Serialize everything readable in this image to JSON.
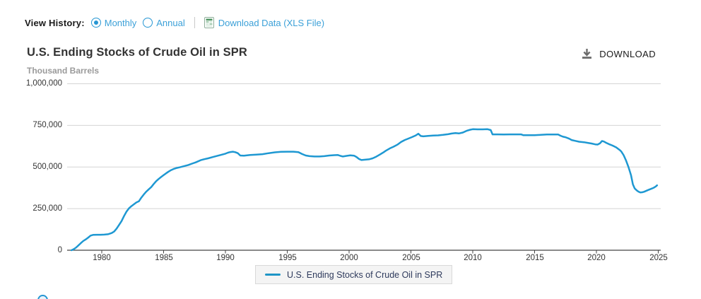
{
  "view_history": {
    "label": "View History:",
    "options": [
      {
        "label": "Monthly",
        "selected": true
      },
      {
        "label": "Annual",
        "selected": false
      }
    ],
    "download_link": "Download Data (XLS File)",
    "xls_icon": "spreadsheet-icon"
  },
  "header": {
    "title": "U.S. Ending Stocks of Crude Oil in SPR",
    "units": "Thousand Barrels",
    "download_label": "DOWNLOAD",
    "download_icon": "download-arrow-icon"
  },
  "colors": {
    "accent_blue": "#2696d3",
    "link_blue": "#3ba0d8",
    "line_blue": "#1e98d2",
    "grid_gray": "#d4d4d4",
    "axis_dark": "#444444"
  },
  "chart_data": {
    "type": "line",
    "title": "U.S. Ending Stocks of Crude Oil in SPR",
    "ylabel": "Thousand Barrels",
    "xlabel": "",
    "grid": "horizontal",
    "xlim": [
      1977.2,
      2025.2
    ],
    "ylim": [
      0,
      1000000
    ],
    "yticks": [
      0,
      250000,
      500000,
      750000,
      1000000
    ],
    "ytick_labels": [
      "0",
      "250,000",
      "500,000",
      "750,000",
      "1,000,000"
    ],
    "xticks": [
      1980,
      1985,
      1990,
      1995,
      2000,
      2005,
      2010,
      2015,
      2020,
      2025
    ],
    "xtick_labels": [
      "1980",
      "1985",
      "1990",
      "1995",
      "2000",
      "2005",
      "2010",
      "2015",
      "2020",
      "2025"
    ],
    "line_color": "#1e98d2",
    "legend": {
      "position": "bottom",
      "label": "U.S. Ending Stocks of Crude Oil in SPR"
    },
    "series": [
      {
        "name": "U.S. Ending Stocks of Crude Oil in SPR",
        "units": "thousand barrels",
        "points": [
          [
            1977.55,
            0
          ],
          [
            1977.7,
            5000
          ],
          [
            1977.9,
            15000
          ],
          [
            1978.1,
            28000
          ],
          [
            1978.3,
            42000
          ],
          [
            1978.5,
            55000
          ],
          [
            1978.7,
            65000
          ],
          [
            1978.9,
            76000
          ],
          [
            1979.1,
            88000
          ],
          [
            1979.3,
            92000
          ],
          [
            1979.6,
            93000
          ],
          [
            1979.9,
            93000
          ],
          [
            1980.2,
            94000
          ],
          [
            1980.5,
            96000
          ],
          [
            1980.8,
            103000
          ],
          [
            1981.0,
            112000
          ],
          [
            1981.2,
            130000
          ],
          [
            1981.4,
            152000
          ],
          [
            1981.6,
            175000
          ],
          [
            1981.8,
            205000
          ],
          [
            1982.0,
            232000
          ],
          [
            1982.2,
            252000
          ],
          [
            1982.4,
            265000
          ],
          [
            1982.6,
            276000
          ],
          [
            1982.8,
            287000
          ],
          [
            1983.0,
            294000
          ],
          [
            1983.2,
            316000
          ],
          [
            1983.4,
            335000
          ],
          [
            1983.6,
            352000
          ],
          [
            1983.8,
            366000
          ],
          [
            1984.0,
            379000
          ],
          [
            1984.2,
            398000
          ],
          [
            1984.4,
            415000
          ],
          [
            1984.6,
            428000
          ],
          [
            1984.8,
            440000
          ],
          [
            1985.0,
            451000
          ],
          [
            1985.2,
            462000
          ],
          [
            1985.4,
            472000
          ],
          [
            1985.6,
            481000
          ],
          [
            1985.8,
            488000
          ],
          [
            1986.0,
            493000
          ],
          [
            1986.3,
            498000
          ],
          [
            1986.6,
            504000
          ],
          [
            1987.0,
            512000
          ],
          [
            1987.3,
            520000
          ],
          [
            1987.6,
            528000
          ],
          [
            1988.0,
            541000
          ],
          [
            1988.3,
            547000
          ],
          [
            1988.6,
            552000
          ],
          [
            1989.0,
            560000
          ],
          [
            1989.3,
            566000
          ],
          [
            1989.6,
            572000
          ],
          [
            1990.0,
            580000
          ],
          [
            1990.2,
            586000
          ],
          [
            1990.4,
            590000
          ],
          [
            1990.6,
            592000
          ],
          [
            1990.8,
            589000
          ],
          [
            1991.0,
            583000
          ],
          [
            1991.2,
            569000
          ],
          [
            1991.5,
            568000
          ],
          [
            1992.0,
            572000
          ],
          [
            1992.5,
            574000
          ],
          [
            1993.0,
            577000
          ],
          [
            1993.5,
            583000
          ],
          [
            1994.0,
            588000
          ],
          [
            1994.5,
            591000
          ],
          [
            1995.0,
            592000
          ],
          [
            1995.5,
            592000
          ],
          [
            1995.9,
            589000
          ],
          [
            1996.2,
            578000
          ],
          [
            1996.5,
            569000
          ],
          [
            1996.8,
            565000
          ],
          [
            1997.2,
            563000
          ],
          [
            1997.6,
            563000
          ],
          [
            1998.0,
            565000
          ],
          [
            1998.4,
            569000
          ],
          [
            1998.8,
            571000
          ],
          [
            1999.1,
            572000
          ],
          [
            1999.3,
            567000
          ],
          [
            1999.5,
            563000
          ],
          [
            1999.8,
            567000
          ],
          [
            2000.1,
            570000
          ],
          [
            2000.4,
            568000
          ],
          [
            2000.6,
            560000
          ],
          [
            2000.8,
            548000
          ],
          [
            2001.0,
            542000
          ],
          [
            2001.3,
            544000
          ],
          [
            2001.6,
            546000
          ],
          [
            2001.9,
            552000
          ],
          [
            2002.2,
            562000
          ],
          [
            2002.5,
            575000
          ],
          [
            2002.8,
            589000
          ],
          [
            2003.0,
            599000
          ],
          [
            2003.3,
            612000
          ],
          [
            2003.6,
            622000
          ],
          [
            2003.9,
            634000
          ],
          [
            2004.2,
            650000
          ],
          [
            2004.5,
            662000
          ],
          [
            2004.8,
            671000
          ],
          [
            2005.1,
            680000
          ],
          [
            2005.4,
            690000
          ],
          [
            2005.6,
            700000
          ],
          [
            2005.8,
            686000
          ],
          [
            2006.0,
            684000
          ],
          [
            2006.4,
            687000
          ],
          [
            2006.8,
            689000
          ],
          [
            2007.2,
            690000
          ],
          [
            2007.6,
            693000
          ],
          [
            2008.0,
            697000
          ],
          [
            2008.3,
            701000
          ],
          [
            2008.6,
            704000
          ],
          [
            2008.9,
            702000
          ],
          [
            2009.2,
            707000
          ],
          [
            2009.5,
            717000
          ],
          [
            2009.8,
            724000
          ],
          [
            2010.0,
            727000
          ],
          [
            2010.4,
            726000
          ],
          [
            2010.8,
            726000
          ],
          [
            2011.2,
            727000
          ],
          [
            2011.45,
            722000
          ],
          [
            2011.6,
            696000
          ],
          [
            2012.0,
            696000
          ],
          [
            2012.5,
            695000
          ],
          [
            2013.0,
            696000
          ],
          [
            2013.5,
            696000
          ],
          [
            2013.9,
            696000
          ],
          [
            2014.1,
            691000
          ],
          [
            2014.6,
            691000
          ],
          [
            2015.0,
            691000
          ],
          [
            2015.5,
            693000
          ],
          [
            2016.0,
            695000
          ],
          [
            2016.5,
            695000
          ],
          [
            2016.9,
            695000
          ],
          [
            2017.1,
            688000
          ],
          [
            2017.3,
            682000
          ],
          [
            2017.5,
            679000
          ],
          [
            2017.8,
            670000
          ],
          [
            2018.0,
            662000
          ],
          [
            2018.3,
            657000
          ],
          [
            2018.6,
            652000
          ],
          [
            2019.0,
            649000
          ],
          [
            2019.3,
            645000
          ],
          [
            2019.6,
            641000
          ],
          [
            2019.9,
            636000
          ],
          [
            2020.1,
            635000
          ],
          [
            2020.3,
            643000
          ],
          [
            2020.45,
            656000
          ],
          [
            2020.6,
            653000
          ],
          [
            2020.8,
            645000
          ],
          [
            2021.0,
            638000
          ],
          [
            2021.3,
            629000
          ],
          [
            2021.6,
            618000
          ],
          [
            2021.9,
            601000
          ],
          [
            2022.0,
            594000
          ],
          [
            2022.2,
            571000
          ],
          [
            2022.4,
            538000
          ],
          [
            2022.6,
            498000
          ],
          [
            2022.8,
            450000
          ],
          [
            2022.95,
            396000
          ],
          [
            2023.1,
            371000
          ],
          [
            2023.25,
            360000
          ],
          [
            2023.4,
            352000
          ],
          [
            2023.55,
            347000
          ],
          [
            2023.7,
            348000
          ],
          [
            2023.85,
            351000
          ],
          [
            2024.0,
            356000
          ],
          [
            2024.2,
            362000
          ],
          [
            2024.4,
            368000
          ],
          [
            2024.6,
            374000
          ],
          [
            2024.8,
            383000
          ],
          [
            2024.9,
            390000
          ]
        ]
      }
    ]
  }
}
